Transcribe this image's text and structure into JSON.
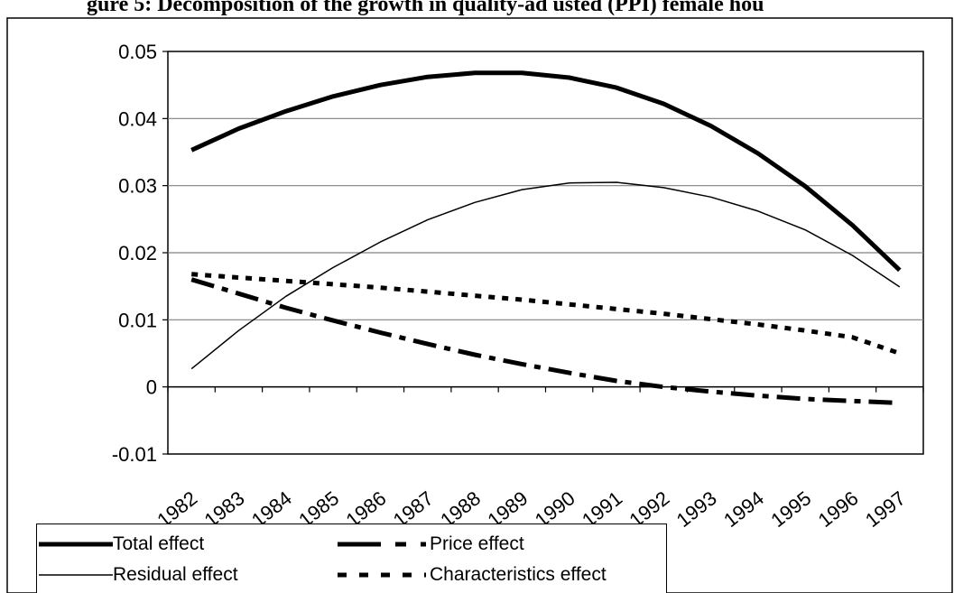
{
  "chart_data": {
    "type": "line",
    "title": "gure 5: Decomposition of the growth in quality-ad usted (PPI) female hou",
    "x": [
      "1982",
      "1983",
      "1984",
      "1985",
      "1986",
      "1987",
      "1988",
      "1989",
      "1990",
      "1991",
      "1992",
      "1993",
      "1994",
      "1995",
      "1996",
      "1997"
    ],
    "ylim": [
      -0.01,
      0.05
    ],
    "yticks": [
      "-0.01",
      "0",
      "0.01",
      "0.02",
      "0.03",
      "0.04",
      "0.05"
    ],
    "grid": true,
    "legend_position": "bottom",
    "series": [
      {
        "name": "Total effect",
        "style": "solid-thick",
        "values": [
          0.0353,
          0.0385,
          0.0411,
          0.0433,
          0.045,
          0.0462,
          0.0468,
          0.0468,
          0.0461,
          0.0446,
          0.0422,
          0.0389,
          0.0348,
          0.0299,
          0.0241,
          0.0174
        ]
      },
      {
        "name": "Residual effect",
        "style": "solid-thin",
        "values": [
          0.0027,
          0.0084,
          0.0135,
          0.0178,
          0.0216,
          0.0249,
          0.0275,
          0.0294,
          0.0304,
          0.0305,
          0.0297,
          0.0283,
          0.0262,
          0.0234,
          0.0196,
          0.0149
        ]
      },
      {
        "name": "Price effect",
        "style": "dash-dot-thick",
        "values": [
          0.016,
          0.0139,
          0.0118,
          0.0099,
          0.0081,
          0.0064,
          0.0048,
          0.0034,
          0.0021,
          0.0009,
          0.0,
          -0.0007,
          -0.0013,
          -0.0018,
          -0.0021,
          -0.0024
        ]
      },
      {
        "name": "Characteristics effect",
        "style": "dotted-thick",
        "values": [
          0.0168,
          0.0163,
          0.0158,
          0.0153,
          0.0148,
          0.0142,
          0.0136,
          0.013,
          0.0123,
          0.0116,
          0.0109,
          0.0101,
          0.0093,
          0.0084,
          0.0074,
          0.005
        ]
      }
    ],
    "colors": {
      "line": "#000000",
      "grid": "#808080",
      "axis": "#000000"
    }
  }
}
